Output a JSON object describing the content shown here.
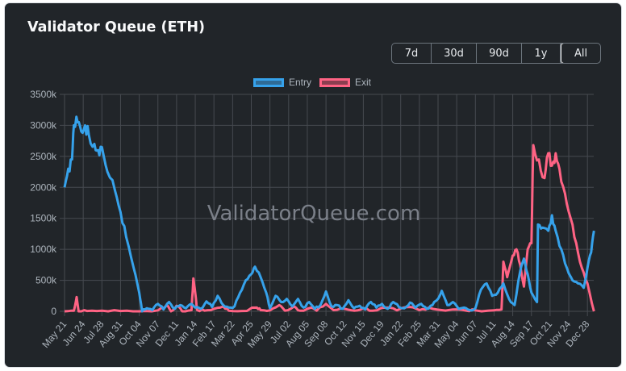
{
  "card": {
    "title": "Validator Queue (ETH)"
  },
  "range_selector": {
    "buttons": [
      {
        "label": "7d",
        "active": false
      },
      {
        "label": "30d",
        "active": false
      },
      {
        "label": "90d",
        "active": false
      },
      {
        "label": "1y",
        "active": false
      },
      {
        "label": "All",
        "active": true
      }
    ]
  },
  "legend": {
    "items": [
      {
        "label": "Entry",
        "stroke": "#36a2eb",
        "fill": "#2f6b96"
      },
      {
        "label": "Exit",
        "stroke": "#ff6384",
        "fill": "#8c3e50"
      }
    ]
  },
  "watermark": "ValidatorQueue.com",
  "colors": {
    "background": "#212529",
    "grid": "#464a50",
    "entry": "#36a2eb",
    "exit": "#ff6384",
    "axis_text": "#adb5bd"
  },
  "chart_data": {
    "type": "line",
    "title": "Validator Queue (ETH)",
    "xlabel": "",
    "ylabel": "",
    "ylim": [
      0,
      3500000
    ],
    "y_ticks": [
      "0",
      "500k",
      "1000k",
      "1500k",
      "2000k",
      "2500k",
      "3000k",
      "3500k"
    ],
    "grid": true,
    "legend_position": "top",
    "categories": [
      "May 21",
      "Jun 24",
      "Jul 28",
      "Aug 31",
      "Oct 04",
      "Nov 07",
      "Dec 11",
      "Jan 14",
      "Feb 17",
      "Mar 22",
      "Apr 25",
      "May 29",
      "Jul 02",
      "Aug 05",
      "Sep 08",
      "Oct 12",
      "Nov 15",
      "Dec 19",
      "Jan 22",
      "Feb 25",
      "Mar 31",
      "May 04",
      "Jun 07",
      "Jul 11",
      "Aug 14",
      "Sep 17",
      "Oct 21",
      "Nov 24",
      "Dec 28"
    ],
    "series": [
      {
        "name": "Entry",
        "color": "#36a2eb",
        "points": [
          [
            0,
            2000000
          ],
          [
            0.2,
            2300000
          ],
          [
            0.4,
            2450000
          ],
          [
            0.5,
            3000000
          ],
          [
            0.7,
            3050000
          ],
          [
            0.9,
            2900000
          ],
          [
            1.1,
            3000000
          ],
          [
            1.3,
            2850000
          ],
          [
            1.6,
            2700000
          ],
          [
            1.8,
            2600000
          ],
          [
            2.0,
            2650000
          ],
          [
            2.3,
            2250000
          ],
          [
            2.7,
            1950000
          ],
          [
            3.0,
            1600000
          ],
          [
            3.3,
            1200000
          ],
          [
            3.7,
            700000
          ],
          [
            4.0,
            300000
          ],
          [
            4.15,
            0
          ],
          [
            4.4,
            50000
          ],
          [
            4.7,
            20000
          ],
          [
            5.0,
            120000
          ],
          [
            5.3,
            30000
          ],
          [
            5.6,
            150000
          ],
          [
            5.9,
            40000
          ],
          [
            6.2,
            100000
          ],
          [
            6.5,
            50000
          ],
          [
            6.8,
            120000
          ],
          [
            7.0,
            60000
          ],
          [
            7.3,
            40000
          ],
          [
            7.6,
            160000
          ],
          [
            7.9,
            70000
          ],
          [
            8.2,
            250000
          ],
          [
            8.5,
            100000
          ],
          [
            8.8,
            60000
          ],
          [
            9.1,
            80000
          ],
          [
            9.4,
            300000
          ],
          [
            9.7,
            500000
          ],
          [
            10.0,
            600000
          ],
          [
            10.2,
            720000
          ],
          [
            10.5,
            550000
          ],
          [
            10.8,
            300000
          ],
          [
            11.0,
            50000
          ],
          [
            11.3,
            250000
          ],
          [
            11.6,
            150000
          ],
          [
            11.9,
            200000
          ],
          [
            12.2,
            80000
          ],
          [
            12.5,
            200000
          ],
          [
            12.8,
            60000
          ],
          [
            13.1,
            150000
          ],
          [
            13.4,
            40000
          ],
          [
            13.7,
            100000
          ],
          [
            14.0,
            320000
          ],
          [
            14.3,
            80000
          ],
          [
            14.6,
            100000
          ],
          [
            14.9,
            40000
          ],
          [
            15.2,
            180000
          ],
          [
            15.5,
            50000
          ],
          [
            15.8,
            90000
          ],
          [
            16.1,
            30000
          ],
          [
            16.4,
            150000
          ],
          [
            16.7,
            60000
          ],
          [
            17.0,
            120000
          ],
          [
            17.3,
            40000
          ],
          [
            17.6,
            150000
          ],
          [
            17.9,
            70000
          ],
          [
            18.2,
            50000
          ],
          [
            18.5,
            140000
          ],
          [
            18.8,
            60000
          ],
          [
            19.1,
            120000
          ],
          [
            19.4,
            40000
          ],
          [
            19.7,
            100000
          ],
          [
            20.0,
            200000
          ],
          [
            20.2,
            330000
          ],
          [
            20.5,
            100000
          ],
          [
            20.8,
            150000
          ],
          [
            21.1,
            40000
          ],
          [
            21.4,
            60000
          ],
          [
            21.7,
            20000
          ],
          [
            22.0,
            50000
          ],
          [
            22.3,
            350000
          ],
          [
            22.6,
            450000
          ],
          [
            22.9,
            250000
          ],
          [
            23.2,
            300000
          ],
          [
            23.5,
            450000
          ],
          [
            23.8,
            200000
          ],
          [
            24.1,
            100000
          ],
          [
            24.4,
            650000
          ],
          [
            24.6,
            850000
          ],
          [
            24.8,
            600000
          ],
          [
            25.0,
            300000
          ],
          [
            25.3,
            150000
          ],
          [
            25.35,
            1400000
          ],
          [
            25.6,
            1350000
          ],
          [
            25.9,
            1300000
          ],
          [
            26.1,
            1550000
          ],
          [
            26.3,
            1300000
          ],
          [
            26.6,
            1000000
          ],
          [
            26.9,
            700000
          ],
          [
            27.2,
            500000
          ],
          [
            27.5,
            450000
          ],
          [
            27.8,
            380000
          ],
          [
            28.0,
            700000
          ],
          [
            28.2,
            950000
          ],
          [
            28.35,
            1300000
          ]
        ]
      },
      {
        "name": "Exit",
        "color": "#ff6384",
        "points": [
          [
            0,
            0
          ],
          [
            0.5,
            10000
          ],
          [
            0.65,
            230000
          ],
          [
            0.75,
            0
          ],
          [
            1.2,
            5000
          ],
          [
            2.0,
            10000
          ],
          [
            3.0,
            5000
          ],
          [
            4.0,
            0
          ],
          [
            5.0,
            15000
          ],
          [
            5.5,
            100000
          ],
          [
            5.7,
            0
          ],
          [
            6.0,
            90000
          ],
          [
            6.3,
            0
          ],
          [
            6.8,
            20000
          ],
          [
            6.9,
            530000
          ],
          [
            7.0,
            300000
          ],
          [
            7.1,
            20000
          ],
          [
            7.5,
            10000
          ],
          [
            8.0,
            40000
          ],
          [
            8.5,
            80000
          ],
          [
            8.8,
            10000
          ],
          [
            9.5,
            5000
          ],
          [
            10.3,
            60000
          ],
          [
            10.5,
            20000
          ],
          [
            11.0,
            15000
          ],
          [
            11.5,
            100000
          ],
          [
            11.8,
            10000
          ],
          [
            12.3,
            80000
          ],
          [
            12.6,
            10000
          ],
          [
            13.2,
            60000
          ],
          [
            13.5,
            10000
          ],
          [
            14.0,
            120000
          ],
          [
            14.4,
            20000
          ],
          [
            15.0,
            40000
          ],
          [
            15.5,
            10000
          ],
          [
            16.0,
            50000
          ],
          [
            16.5,
            10000
          ],
          [
            17.2,
            60000
          ],
          [
            17.8,
            15000
          ],
          [
            18.5,
            70000
          ],
          [
            19.0,
            20000
          ],
          [
            19.5,
            60000
          ],
          [
            20.2,
            20000
          ],
          [
            20.8,
            30000
          ],
          [
            21.5,
            10000
          ],
          [
            22.0,
            15000
          ],
          [
            23.0,
            15000
          ],
          [
            23.4,
            30000
          ],
          [
            23.5,
            800000
          ],
          [
            23.7,
            550000
          ],
          [
            24.0,
            900000
          ],
          [
            24.2,
            1000000
          ],
          [
            24.4,
            750000
          ],
          [
            24.6,
            400000
          ],
          [
            24.8,
            1000000
          ],
          [
            25.0,
            1100000
          ],
          [
            25.1,
            2680000
          ],
          [
            25.4,
            2450000
          ],
          [
            25.7,
            2150000
          ],
          [
            25.9,
            2550000
          ],
          [
            26.1,
            2350000
          ],
          [
            26.3,
            2550000
          ],
          [
            26.5,
            2300000
          ],
          [
            26.8,
            1900000
          ],
          [
            27.1,
            1500000
          ],
          [
            27.4,
            1100000
          ],
          [
            27.7,
            700000
          ],
          [
            28.0,
            450000
          ],
          [
            28.35,
            0
          ]
        ]
      }
    ]
  }
}
